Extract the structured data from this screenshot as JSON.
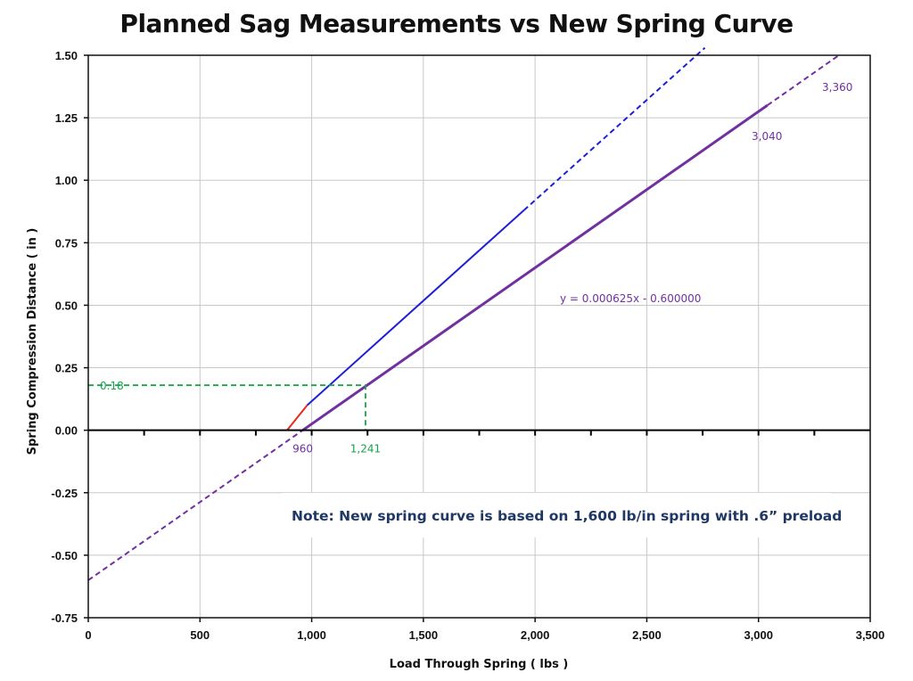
{
  "chart_data": {
    "type": "line",
    "title": "Planned Sag Measurements vs New Spring Curve",
    "xlabel": "Load Through Spring  ( lbs )",
    "ylabel": "Spring Compression Distance  ( in )",
    "xlim": [
      0,
      3500
    ],
    "ylim": [
      -0.75,
      1.5
    ],
    "xticks": [
      0,
      500,
      1000,
      1500,
      2000,
      2500,
      3000,
      3500
    ],
    "xtick_labels": [
      "0",
      "500",
      "1,000",
      "1,500",
      "2,000",
      "2,500",
      "3,000",
      "3,500"
    ],
    "yticks": [
      -0.75,
      -0.5,
      -0.25,
      0,
      0.25,
      0.5,
      0.75,
      1.0,
      1.25,
      1.5
    ],
    "ytick_labels": [
      "-0.75",
      "-0.50",
      "-0.25",
      "0.00",
      "0.25",
      "0.50",
      "0.75",
      "1.00",
      "1.25",
      "1.50"
    ],
    "grid": true,
    "series": [
      {
        "color": "#e8291c",
        "style": "solid",
        "x": [
          890,
          980
        ],
        "y": [
          0.0,
          0.1
        ]
      },
      {
        "color": "#1f1fd6",
        "style": "solid",
        "x": [
          980,
          1950
        ],
        "y": [
          0.1,
          0.88
        ]
      },
      {
        "color": "#1f1fd6",
        "style": "dashed",
        "x": [
          1950,
          2760
        ],
        "y": [
          0.88,
          1.53
        ]
      },
      {
        "color": "#7030a0",
        "style": "solid",
        "x": [
          960,
          3040
        ],
        "y": [
          0.0,
          1.3
        ]
      },
      {
        "color": "#7030a0",
        "style": "dashed",
        "x": [
          0,
          960
        ],
        "y": [
          -0.6,
          0.0
        ]
      },
      {
        "color": "#7030a0",
        "style": "dashed",
        "x": [
          3040,
          3360
        ],
        "y": [
          1.3,
          1.5
        ]
      }
    ],
    "guides": {
      "color": "#16a34a",
      "x": 1241,
      "y": 0.18
    },
    "annotations": {
      "equation": "y = 0.000625x - 0.600000",
      "x_intercept": "960",
      "sag_load": "1,241",
      "sag_value": "0.18",
      "point_3040": "3,040",
      "point_3360": "3,360",
      "note": "Note:  New spring curve is based on 1,600 lb/in spring with .6” preload"
    },
    "colors": {
      "purple": "#7030a0",
      "green": "#16a34a",
      "blue": "#1f1fd6",
      "red": "#e8291c",
      "note": "#1f3864"
    }
  }
}
